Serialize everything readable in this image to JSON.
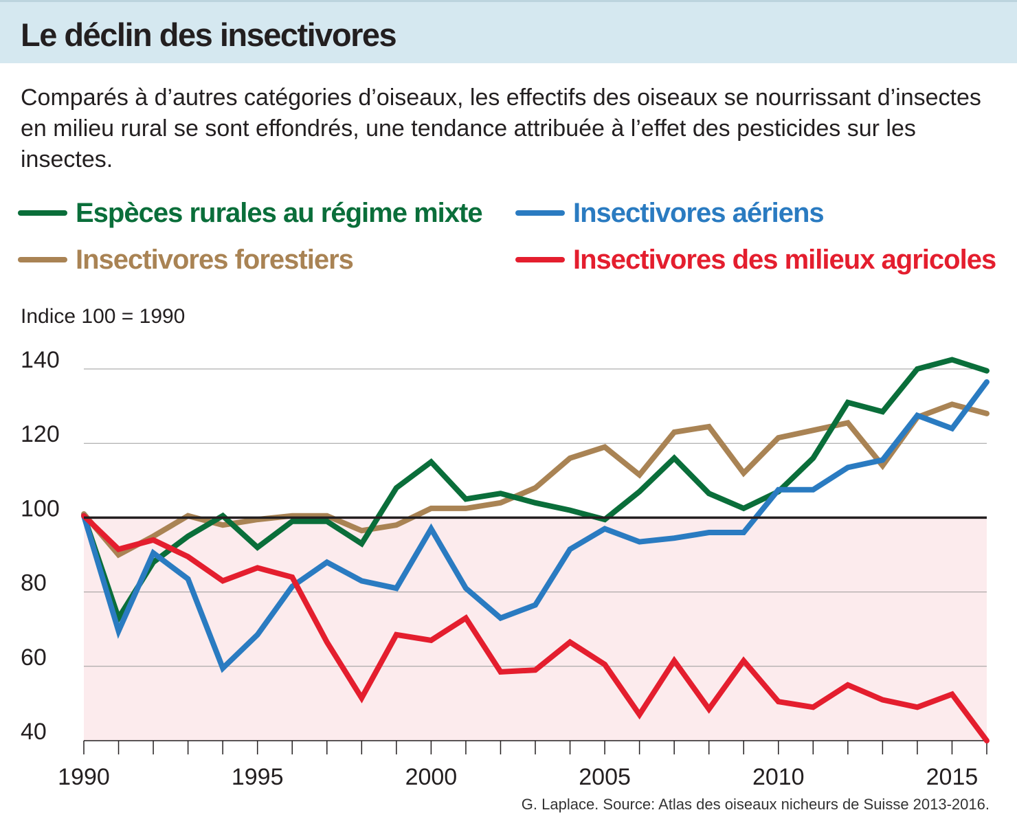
{
  "title": "Le déclin des insectivores",
  "subtitle": "Comparés à d’autres catégories d’oiseaux, les effectifs des oiseaux se nourrissant d’insectes en milieu rural se sont effondrés, une tendance attribuée à l’effet des pesticides sur les insectes.",
  "index_note": "Indice 100 = 1990",
  "source": "G. Laplace. Source: Atlas des oiseaux nicheurs de Suisse 2013-2016.",
  "colors": {
    "green": "#0a6e3a",
    "blue": "#2a7bc1",
    "brown": "#a98354",
    "red": "#e41e2e",
    "shade": "#fcebed",
    "grid": "#9a9a9a",
    "baseline": "#231f20"
  },
  "legend": [
    {
      "label": "Espèces rurales au régime mixte",
      "color": "#0a6e3a"
    },
    {
      "label": "Insectivores aériens",
      "color": "#2a7bc1"
    },
    {
      "label": "Insectivores forestiers",
      "color": "#a98354"
    },
    {
      "label": "Insectivores des milieux agricoles",
      "color": "#e41e2e"
    }
  ],
  "chart_data": {
    "type": "line",
    "title": "Le déclin des insectivores",
    "ylabel": "Indice 100 = 1990",
    "xlabel": "",
    "x": [
      1990,
      1991,
      1992,
      1993,
      1994,
      1995,
      1996,
      1997,
      1998,
      1999,
      2000,
      2001,
      2002,
      2003,
      2004,
      2005,
      2006,
      2007,
      2008,
      2009,
      2010,
      2011,
      2012,
      2013,
      2014,
      2015,
      2016
    ],
    "xticks": [
      1990,
      1995,
      2000,
      2005,
      2010,
      2015
    ],
    "xtick_labels": [
      "1990",
      "1995",
      "2000",
      "2005",
      "2010",
      "2015"
    ],
    "yticks": [
      40,
      60,
      80,
      100,
      120,
      140
    ],
    "ytick_labels": [
      "40",
      "60",
      "80",
      "100",
      "120",
      "140"
    ],
    "xlim": [
      1990,
      2016
    ],
    "ylim": [
      40,
      140
    ],
    "baseline": 100,
    "grid": true,
    "series": [
      {
        "name": "Insectivores forestiers",
        "color": "#a98354",
        "values": [
          101,
          90,
          95,
          100.5,
          98,
          99.5,
          100.5,
          100.5,
          96.5,
          98,
          102.5,
          102.5,
          104,
          108,
          116,
          119,
          111.5,
          123,
          124.5,
          112,
          121.5,
          123.5,
          125.5,
          114,
          127,
          130.5,
          128
        ]
      },
      {
        "name": "Espèces rurales au régime mixte",
        "color": "#0a6e3a",
        "values": [
          100.5,
          73,
          88,
          95,
          100.5,
          92,
          99,
          99,
          93,
          108,
          115,
          105,
          106.5,
          104,
          102,
          99.5,
          107,
          116,
          106.5,
          102.5,
          107,
          116,
          131,
          128.5,
          140,
          142.5,
          139.5
        ]
      },
      {
        "name": "Insectivores aériens",
        "color": "#2a7bc1",
        "values": [
          100.5,
          69.5,
          90.5,
          83.5,
          59.5,
          68.5,
          81.5,
          88,
          83,
          81,
          97,
          81,
          73,
          76.5,
          91.5,
          97,
          93.5,
          94.5,
          96,
          96,
          107.5,
          107.5,
          113.5,
          115.5,
          127.5,
          124,
          136.5
        ]
      },
      {
        "name": "Insectivores des milieux agricoles",
        "color": "#e41e2e",
        "values": [
          100.5,
          91.5,
          94,
          89.5,
          83,
          86.5,
          84,
          66.5,
          51.5,
          68.5,
          67,
          73,
          58.5,
          59,
          66.5,
          60.5,
          47,
          61.5,
          48.5,
          61.5,
          50.5,
          49,
          55,
          51,
          49,
          52.5,
          40
        ]
      }
    ]
  }
}
